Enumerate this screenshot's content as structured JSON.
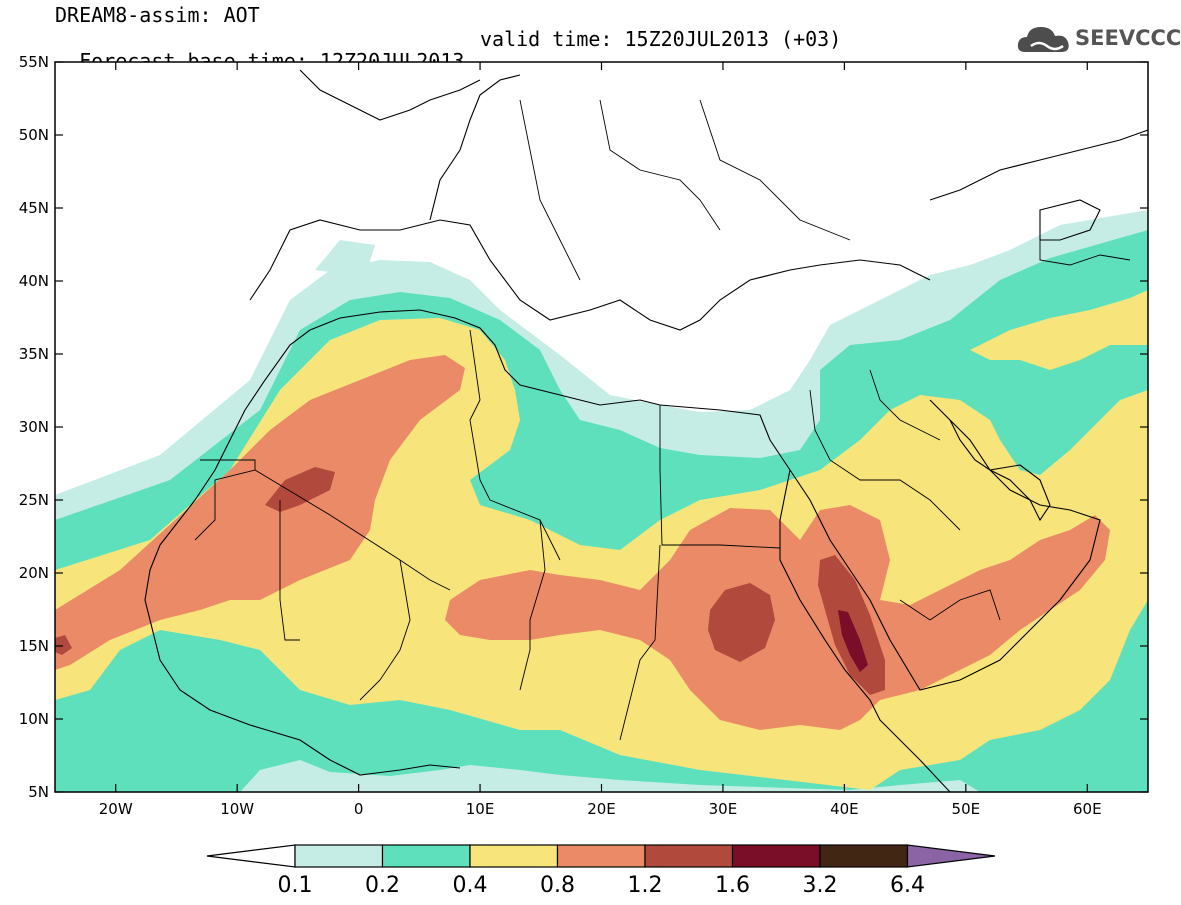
{
  "header": {
    "title": "DREAM8-assim: AOT",
    "base_time": "Forecast base time: 12Z20JUL2013",
    "valid_time": "valid time: 15Z20JUL2013 (+03)"
  },
  "logo": {
    "text": "SEEVCCC",
    "icon": "cloud-icon"
  },
  "map": {
    "lon_range": [
      -25,
      65
    ],
    "lat_range": [
      5,
      55
    ],
    "lat_ticks": [
      "55N",
      "50N",
      "45N",
      "40N",
      "35N",
      "30N",
      "25N",
      "20N",
      "15N",
      "10N",
      "5N"
    ],
    "lon_ticks": [
      "20W",
      "10W",
      "0",
      "10E",
      "20E",
      "30E",
      "40E",
      "50E",
      "60E"
    ],
    "lat_values": [
      55,
      50,
      45,
      40,
      35,
      30,
      25,
      20,
      15,
      10,
      5
    ],
    "lon_values": [
      -20,
      -10,
      0,
      10,
      20,
      30,
      40,
      50,
      60
    ]
  },
  "colorbar": {
    "labels": [
      "0.1",
      "0.2",
      "0.4",
      "0.8",
      "1.2",
      "1.6",
      "3.2",
      "6.4"
    ],
    "colors": [
      "#ffffff",
      "#c5ede6",
      "#5ee0bd",
      "#f7e57b",
      "#ea8a66",
      "#b2493d",
      "#7a0d27",
      "#412614",
      "#8b64a6"
    ]
  },
  "legend_colors": {
    "level_0.1": "#c5ede6",
    "level_0.2": "#5ee0bd",
    "level_0.4": "#f7e57b",
    "level_0.8": "#ea8a66",
    "level_1.2": "#b2493d",
    "level_1.6": "#7a0d27",
    "level_3.2": "#412614"
  }
}
